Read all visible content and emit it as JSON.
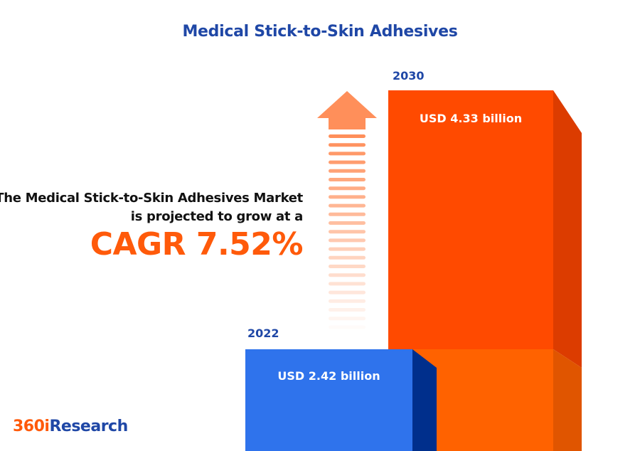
{
  "title": "Medical Stick-to-Skin Adhesives",
  "description": "The Medical Stick-to-Skin Adhesives Market is projected to grow at a",
  "cagr_label": "CAGR 7.52%",
  "logo": {
    "part1": "360i",
    "part2": "Research"
  },
  "colors": {
    "bar_2022": "#2f73ec",
    "bar_2030": "#ff4a00",
    "accent": "#ff5a0a",
    "title": "#1f47a6",
    "arrow": "#ff8f5a"
  },
  "chart_data": {
    "type": "bar",
    "title": "Medical Stick-to-Skin Adhesives",
    "categories": [
      "2022",
      "2030"
    ],
    "values": [
      2.42,
      4.33
    ],
    "value_labels": [
      "USD 2.42 billion",
      "USD 4.33 billion"
    ],
    "unit": "USD billion",
    "cagr": 7.52,
    "grid": false
  }
}
